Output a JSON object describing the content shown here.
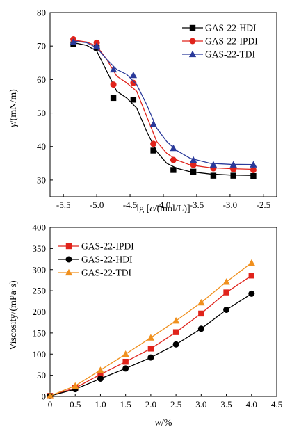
{
  "chart_data": [
    {
      "type": "line",
      "xlabel_parts": [
        "lg [",
        "c",
        "/(mol/L)]"
      ],
      "ylabel_parts": [
        "γ",
        "/(mN/m)"
      ],
      "xlim": [
        -5.7,
        -2.3
      ],
      "ylim": [
        25,
        80
      ],
      "xticks": [
        -5.5,
        -5.0,
        -4.5,
        -4.0,
        -3.5,
        -3.0,
        -2.5
      ],
      "xtick_labels": [
        "-5.5",
        "-5.0",
        "-4.5",
        "-4.0",
        "-3.5",
        "-3.0",
        "-2.5"
      ],
      "yticks": [
        30,
        40,
        50,
        60,
        70,
        80
      ],
      "ytick_labels": [
        "30",
        "40",
        "50",
        "60",
        "70",
        "80"
      ],
      "legend_position": "top-right",
      "series": [
        {
          "name": "GAS-22-HDI",
          "color": "#000000",
          "marker": "square",
          "x": [
            -5.35,
            -5.0,
            -4.75,
            -4.45,
            -4.15,
            -3.85,
            -3.55,
            -3.25,
            -2.95,
            -2.65
          ],
          "y": [
            70.5,
            69.5,
            54.5,
            54.0,
            38.8,
            33.0,
            32.5,
            31.3,
            31.3,
            31.2
          ],
          "fit": [
            [
              -5.35,
              71
            ],
            [
              -5.15,
              70.2
            ],
            [
              -5.0,
              68.5
            ],
            [
              -4.85,
              62.5
            ],
            [
              -4.7,
              56.5
            ],
            [
              -4.55,
              54.5
            ],
            [
              -4.4,
              51.5
            ],
            [
              -4.25,
              44.5
            ],
            [
              -4.1,
              38.5
            ],
            [
              -3.95,
              35.0
            ],
            [
              -3.8,
              33.5
            ],
            [
              -3.6,
              32.5
            ],
            [
              -3.3,
              31.8
            ],
            [
              -3.0,
              31.5
            ],
            [
              -2.65,
              31.4
            ]
          ]
        },
        {
          "name": "GAS-22-IPDI",
          "color": "#e0231b",
          "marker": "circle",
          "x": [
            -5.35,
            -5.0,
            -4.75,
            -4.45,
            -4.15,
            -3.85,
            -3.55,
            -3.25,
            -2.95,
            -2.65
          ],
          "y": [
            72.0,
            71.0,
            58.5,
            59.0,
            40.8,
            36.0,
            34.5,
            33.5,
            33.2,
            33.0
          ],
          "fit": [
            [
              -5.35,
              71.8
            ],
            [
              -5.15,
              71.2
            ],
            [
              -5.0,
              70.0
            ],
            [
              -4.85,
              66.0
            ],
            [
              -4.7,
              61.0
            ],
            [
              -4.55,
              59.0
            ],
            [
              -4.4,
              56.5
            ],
            [
              -4.25,
              49.0
            ],
            [
              -4.1,
              41.5
            ],
            [
              -3.95,
              38.0
            ],
            [
              -3.8,
              36.0
            ],
            [
              -3.6,
              34.5
            ],
            [
              -3.3,
              33.7
            ],
            [
              -3.0,
              33.4
            ],
            [
              -2.65,
              33.2
            ]
          ]
        },
        {
          "name": "GAS-22-TDI",
          "color": "#2a3a9a",
          "marker": "triangle",
          "x": [
            -5.35,
            -5.0,
            -4.75,
            -4.45,
            -4.15,
            -3.85,
            -3.55,
            -3.25,
            -2.95,
            -2.65
          ],
          "y": [
            71.2,
            70.0,
            63.0,
            61.3,
            46.7,
            39.5,
            36.0,
            34.6,
            34.6,
            34.6
          ],
          "fit": [
            [
              -5.35,
              71.5
            ],
            [
              -5.15,
              71.0
            ],
            [
              -5.0,
              69.5
            ],
            [
              -4.85,
              66.0
            ],
            [
              -4.7,
              63.0
            ],
            [
              -4.55,
              61.5
            ],
            [
              -4.4,
              58.5
            ],
            [
              -4.25,
              52.5
            ],
            [
              -4.1,
              45.5
            ],
            [
              -3.95,
              41.5
            ],
            [
              -3.8,
              38.8
            ],
            [
              -3.6,
              36.5
            ],
            [
              -3.3,
              35.0
            ],
            [
              -3.0,
              34.7
            ],
            [
              -2.65,
              34.6
            ]
          ]
        }
      ]
    },
    {
      "type": "line",
      "xlabel_parts": [
        "",
        "w",
        "/%"
      ],
      "ylabel_parts": [
        "",
        "Viscosity/(mPa·s)"
      ],
      "xlim": [
        0,
        4.5
      ],
      "ylim": [
        0,
        400
      ],
      "xticks": [
        0,
        0.5,
        1.0,
        1.5,
        2.0,
        2.5,
        3.0,
        3.5,
        4.0,
        4.5
      ],
      "xtick_labels": [
        "0",
        "0.5",
        "1.0",
        "1.5",
        "2.0",
        "2.5",
        "3.0",
        "3.5",
        "4.0",
        "4.5"
      ],
      "yticks": [
        0,
        50,
        100,
        150,
        200,
        250,
        300,
        350,
        400
      ],
      "ytick_labels": [
        "0",
        "50",
        "100",
        "150",
        "200",
        "250",
        "300",
        "350",
        "400"
      ],
      "legend_position": "top-left",
      "series": [
        {
          "name": "GAS-22-IPDI",
          "color": "#e0231b",
          "marker": "square",
          "x": [
            0,
            0.5,
            1.0,
            1.5,
            2.0,
            2.5,
            3.0,
            3.5,
            4.0
          ],
          "y": [
            1,
            20,
            52,
            82,
            113,
            152,
            196,
            246,
            286
          ]
        },
        {
          "name": "GAS-22-HDI",
          "color": "#000000",
          "marker": "circle",
          "x": [
            0,
            0.5,
            1.0,
            1.5,
            2.0,
            2.5,
            3.0,
            3.5,
            4.0
          ],
          "y": [
            1,
            17,
            42,
            66,
            92,
            123,
            160,
            205,
            243
          ]
        },
        {
          "name": "GAS-22-TDI",
          "color": "#f0901e",
          "marker": "triangle",
          "x": [
            0,
            0.5,
            1.0,
            1.5,
            2.0,
            2.5,
            3.0,
            3.5,
            4.0
          ],
          "y": [
            1,
            25,
            62,
            100,
            139,
            179,
            222,
            271,
            316
          ]
        }
      ]
    }
  ]
}
